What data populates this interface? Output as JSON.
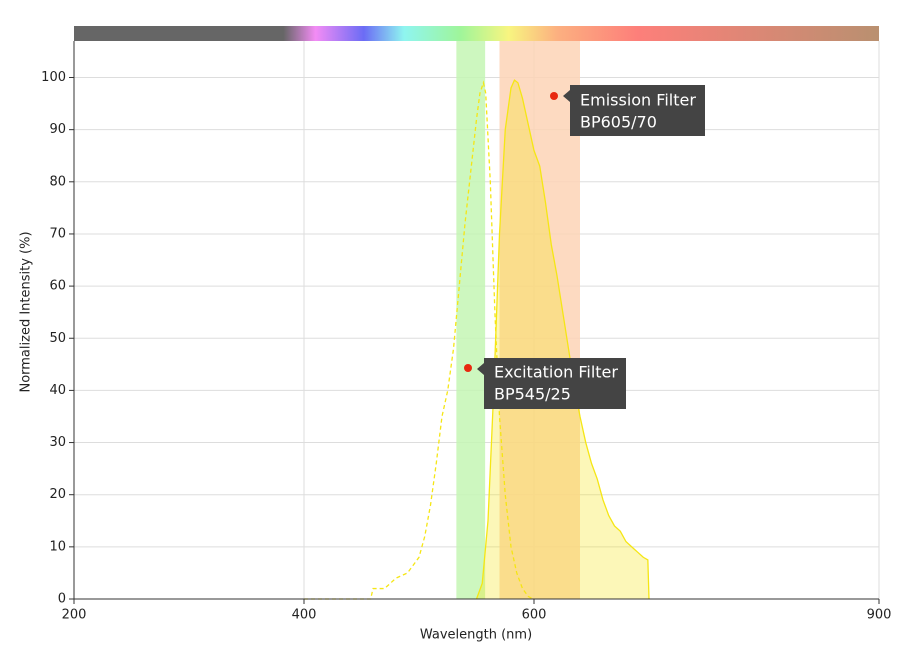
{
  "chart_data": {
    "type": "line",
    "x_label": "Wavelength (nm)",
    "y_label": "Normalized Intensity (%)",
    "xlim": [
      200,
      900
    ],
    "ylim": [
      0,
      107
    ],
    "xticks": [
      200,
      400,
      600,
      900
    ],
    "yticks": [
      0,
      10,
      20,
      30,
      40,
      50,
      60,
      70,
      80,
      90,
      100
    ],
    "grid": true,
    "bands": [
      {
        "label": "Excitation Filter",
        "name": "BP545/25",
        "range": [
          532.5,
          557.5
        ],
        "color": "#c4f6b4"
      },
      {
        "label": "Emission Filter",
        "name": "BP605/70",
        "range": [
          570,
          640
        ],
        "color": "#fdd3b6"
      }
    ],
    "series": [
      {
        "color": "#f5e614",
        "dashed": true,
        "fill": false,
        "x": [
          400,
          458,
          460,
          470,
          480,
          490,
          500,
          505,
          510,
          515,
          520,
          525,
          530,
          535,
          540,
          545,
          550,
          553,
          556,
          558,
          562,
          566,
          570,
          575,
          580,
          585,
          590,
          595,
          599
        ],
        "values": [
          0,
          0,
          2,
          2,
          4,
          5,
          8,
          12,
          18,
          26,
          35,
          40,
          48,
          60,
          72,
          82,
          92,
          97,
          99,
          97,
          80,
          55,
          35,
          20,
          10,
          5,
          2,
          0.5,
          0
        ]
      },
      {
        "color": "#f5e614",
        "dashed": false,
        "fill": true,
        "x": [
          550,
          555,
          560,
          565,
          570,
          575,
          580,
          583,
          586,
          590,
          595,
          600,
          605,
          610,
          615,
          620,
          625,
          630,
          635,
          640,
          645,
          650,
          655,
          660,
          665,
          670,
          675,
          680,
          685,
          690,
          695,
          699,
          700
        ],
        "values": [
          0,
          3,
          15,
          40,
          70,
          90,
          98,
          99.5,
          99,
          96,
          91,
          86,
          83,
          76,
          68,
          62,
          55,
          48,
          41,
          35,
          30,
          26,
          23,
          19,
          16,
          14,
          13,
          11,
          10,
          9,
          8,
          7.5,
          0
        ]
      }
    ]
  }
}
